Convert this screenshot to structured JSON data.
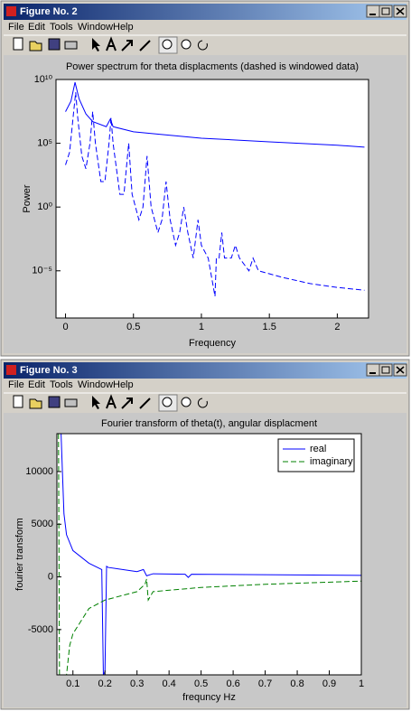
{
  "windows": [
    {
      "title": "Figure No. 2",
      "menu": [
        "File",
        "Edit",
        "Tools",
        "Window",
        "Help"
      ],
      "chart": {
        "type": "line",
        "title": "Power spectrum for theta displacments (dashed is windowed data)",
        "x_label": "Frequency",
        "y_label": "Power",
        "yscale": "log",
        "xlim": [
          -0.07,
          2.23
        ],
        "ylim": [
          2e-09,
          10000000000.0
        ],
        "xticks": [
          0,
          0.5,
          1,
          1.5,
          2
        ],
        "yticks": [
          {
            "value": 1e-05,
            "label": "10⁻⁵"
          },
          {
            "value": 1,
            "label": "10⁰"
          },
          {
            "value": 100000,
            "label": "10⁵"
          },
          {
            "value": 10000000000.0,
            "label": "10¹⁰"
          }
        ],
        "series": [
          {
            "color": "#0000ff",
            "line_style": "solid",
            "x": [
              0,
              0.04,
              0.07,
              0.1,
              0.15,
              0.2,
              0.3,
              0.33,
              0.35,
              0.5,
              0.7,
              1,
              1.5,
              2,
              2.2
            ],
            "values": [
              30000000.0,
              200000000.0,
              6000000000.0,
              300000000.0,
              20000000.0,
              5000000.0,
              2000000.0,
              8000000.0,
              2000000.0,
              800000.0,
              500000.0,
              250000.0,
              130000.0,
              70000.0,
              50000.0
            ]
          },
          {
            "color": "#0000ff",
            "line_style": "dashed",
            "x": [
              0,
              0.03,
              0.06,
              0.075,
              0.09,
              0.12,
              0.15,
              0.18,
              0.2,
              0.22,
              0.26,
              0.29,
              0.32,
              0.335,
              0.35,
              0.4,
              0.43,
              0.465,
              0.49,
              0.54,
              0.57,
              0.6,
              0.63,
              0.68,
              0.71,
              0.74,
              0.77,
              0.81,
              0.84,
              0.87,
              0.9,
              0.94,
              0.975,
              1.0,
              1.05,
              1.1,
              1.11,
              1.13,
              1.15,
              1.17,
              1.22,
              1.25,
              1.28,
              1.35,
              1.38,
              1.42,
              1.6,
              1.8,
              2.0,
              2.2
            ],
            "values": [
              2000,
              20000,
              30000000.0,
              1000000000.0,
              10000000.0,
              10000,
              1000,
              100000,
              30000000.0,
              100000,
              100,
              100,
              100000,
              10000000.0,
              100000,
              10,
              10,
              100000,
              10,
              0.1,
              1,
              10000,
              1,
              0.01,
              0.1,
              100,
              0.1,
              0.001,
              0.01,
              1,
              0.01,
              0.0001,
              0.1,
              0.001,
              0.0001,
              1e-07,
              0.0001,
              0.0001,
              0.01,
              0.0001,
              0.0001,
              0.001,
              0.0001,
              1e-05,
              0.0001,
              1e-05,
              3e-06,
              1e-06,
              5e-07,
              3e-07
            ]
          }
        ]
      }
    },
    {
      "title": "Figure No. 3",
      "menu": [
        "File",
        "Edit",
        "Tools",
        "Window",
        "Help"
      ],
      "chart": {
        "type": "line",
        "title": "Fourier transform of theta(t), angular displacment",
        "x_label": "frequncy Hz",
        "y_label": "fourier transform",
        "xlim": [
          0.05,
          1
        ],
        "ylim": [
          -9300,
          13600
        ],
        "xticks": [
          0.1,
          0.2,
          0.3,
          0.4,
          0.5,
          0.6,
          0.7,
          0.8,
          0.9,
          1
        ],
        "yticks": [
          -5000,
          0,
          5000,
          10000
        ],
        "legend": "upper right",
        "series": [
          {
            "name": "real",
            "color": "#0000ff",
            "line_style": "solid",
            "x": [
              0.063,
              0.068,
              0.072,
              0.08,
              0.1,
              0.15,
              0.19,
              0.195,
              0.2,
              0.205,
              0.21,
              0.3,
              0.32,
              0.33,
              0.35,
              0.45,
              0.46,
              0.47,
              1
            ],
            "values": [
              13600,
              9300,
              6000,
              4000,
              2500,
              1300,
              700,
              -9300,
              -9000,
              1000,
              900,
              500,
              700,
              100,
              300,
              250,
              -50,
              250,
              150
            ]
          },
          {
            "name": "imaginary",
            "color": "#008000",
            "line_style": "dashed",
            "x": [
              0.055,
              0.058,
              0.08,
              0.09,
              0.1,
              0.15,
              0.2,
              0.3,
              0.325,
              0.33,
              0.335,
              0.35,
              0.5,
              0.7,
              1
            ],
            "values": [
              13600,
              -9300,
              -9300,
              -6500,
              -5400,
              -3000,
              -2200,
              -1400,
              -700,
              -200,
              -2200,
              -1400,
              -1000,
              -700,
              -400
            ]
          }
        ]
      }
    }
  ]
}
